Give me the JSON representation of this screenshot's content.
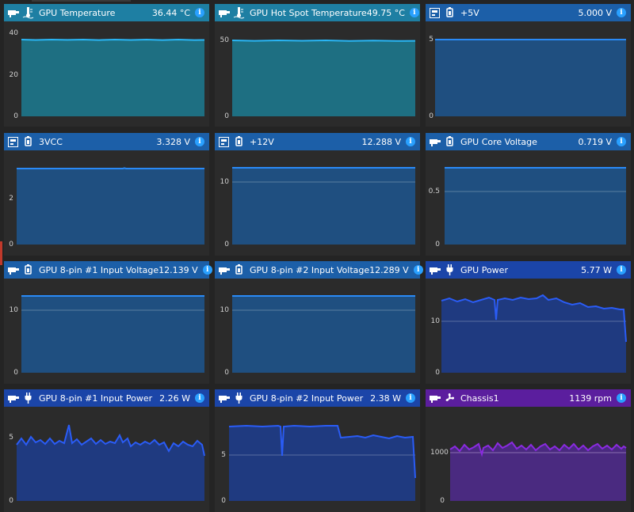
{
  "cards": [
    {
      "title": "GPU Temperature",
      "value": "36.44 °C",
      "sensor_icon": "thermometer-icon",
      "color": "#1e7fa3",
      "ticks": [
        "40",
        "20",
        "0"
      ]
    },
    {
      "title": "GPU Hot Spot Temperature",
      "value": "49.75 °C",
      "sensor_icon": "thermometer-icon",
      "color": "#1e7fa3",
      "ticks": [
        "50",
        "0"
      ]
    },
    {
      "title": "+5V",
      "value": "5.000 V",
      "sensor_icon": "plug-icon",
      "color": "#1c5fa8",
      "ticks": [
        "5",
        "0"
      ]
    },
    {
      "title": "3VCC",
      "value": "3.328 V",
      "sensor_icon": "plug-icon",
      "color": "#1c5fa8",
      "ticks": [
        "2",
        "0"
      ]
    },
    {
      "title": "+12V",
      "value": "12.288 V",
      "sensor_icon": "plug-icon",
      "color": "#1c5fa8",
      "ticks": [
        "10",
        "0"
      ]
    },
    {
      "title": "GPU Core Voltage",
      "value": "0.719 V",
      "sensor_icon": "plug-icon",
      "color": "#1c5fa8",
      "ticks": [
        "0.5",
        "0"
      ]
    },
    {
      "title": "GPU 8-pin #1 Input Voltage",
      "value": "12.139 V",
      "sensor_icon": "plug-icon",
      "color": "#1c5fa8",
      "ticks": [
        "10",
        "0"
      ]
    },
    {
      "title": "GPU 8-pin #2 Input Voltage",
      "value": "12.289 V",
      "sensor_icon": "plug-icon",
      "color": "#1c5fa8",
      "ticks": [
        "10",
        "0"
      ]
    },
    {
      "title": "GPU Power",
      "value": "5.77 W",
      "sensor_icon": "power-plug-icon",
      "color": "#1b45a8",
      "ticks": [
        "10",
        "0"
      ]
    },
    {
      "title": "GPU 8-pin #1 Input Power",
      "value": "2.26 W",
      "sensor_icon": "power-plug-icon",
      "color": "#1b45a8",
      "ticks": [
        "5",
        "0"
      ]
    },
    {
      "title": "GPU 8-pin #2 Input Power",
      "value": "2.38 W",
      "sensor_icon": "power-plug-icon",
      "color": "#1b45a8",
      "ticks": [
        "5",
        "0"
      ]
    },
    {
      "title": "Chassis1",
      "value": "1139 rpm",
      "sensor_icon": "fan-icon",
      "color": "#5b1e9e",
      "ticks": [
        "1000",
        "0"
      ]
    }
  ]
}
